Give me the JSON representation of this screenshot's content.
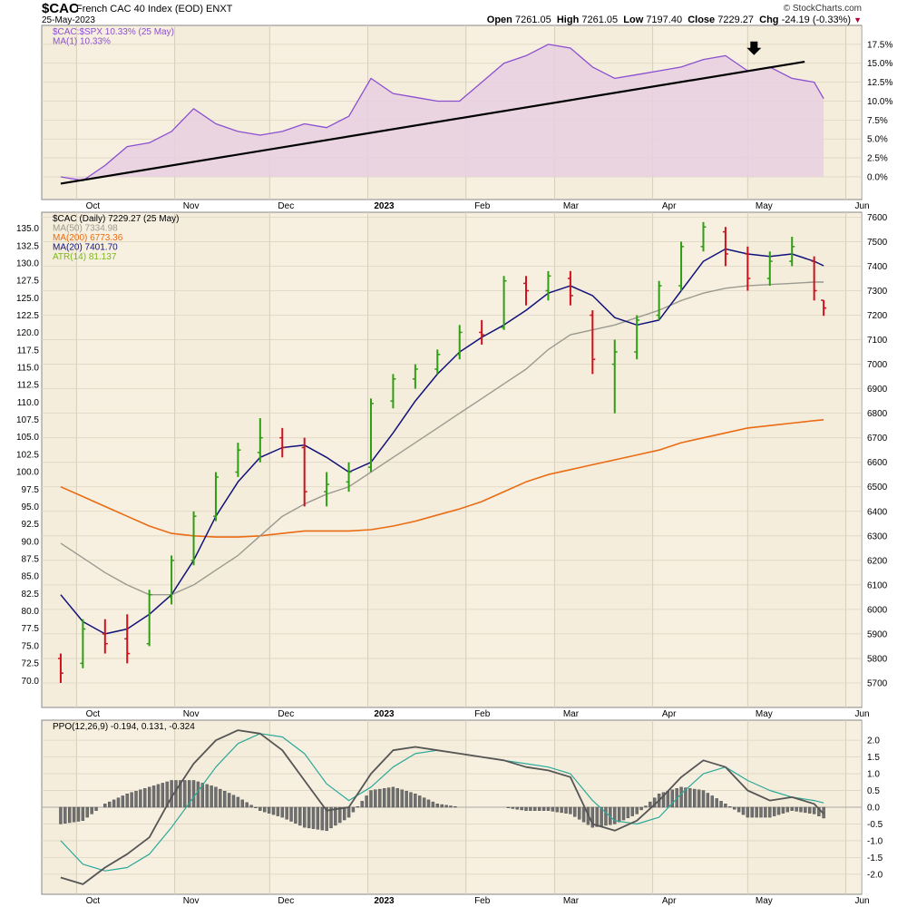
{
  "header": {
    "ticker": "$CAC",
    "description": "French CAC 40 Index (EOD)  ENXT",
    "date": "25-May-2023",
    "brand": "© StockCharts.com",
    "open_label": "Open",
    "open": "7261.05",
    "high_label": "High",
    "high": "7261.05",
    "low_label": "Low",
    "low": "7197.40",
    "close_label": "Close",
    "close": "7229.27",
    "chg_label": "Chg",
    "chg": "-24.19 (-0.33%)"
  },
  "colors": {
    "panel_bg": "#f5eddc",
    "ratio_line": "#8a4fd0",
    "ratio_fill": "#e8cfe0",
    "trendline": "#000000",
    "up_bar": "#2e9e12",
    "down_bar": "#d0101a",
    "neutral_bar": "#1a1ab8",
    "ma50": "#9a9a90",
    "ma200": "#ea6b12",
    "ma20": "#10127a",
    "atr": "#7ab81a",
    "ppo_line": "#555555",
    "ppo_signal": "#2aa898",
    "ppo_hist": "#707070"
  },
  "months": [
    "Oct",
    "Nov",
    "Dec",
    "2023",
    "Feb",
    "Mar",
    "Apr",
    "May",
    "Jun"
  ],
  "annotations": {
    "arrow_icon": "down-arrow-icon"
  },
  "chart_data": [
    {
      "type": "area",
      "panel": "ratio",
      "legend": [
        {
          "text": "$CAC:$SPX 10.33% (25 May)"
        },
        {
          "text": "MA(1) 10.33%"
        }
      ],
      "y_ticks": [
        "17.5%",
        "15.0%",
        "12.5%",
        "10.0%",
        "7.5%",
        "5.0%",
        "2.5%",
        "0.0%"
      ],
      "ylim": [
        -3.0,
        20.0
      ],
      "x": [
        "2022-09-26",
        "2022-10-03",
        "2022-10-10",
        "2022-10-17",
        "2022-10-24",
        "2022-10-31",
        "2022-11-07",
        "2022-11-14",
        "2022-11-21",
        "2022-11-28",
        "2022-12-05",
        "2022-12-12",
        "2022-12-19",
        "2022-12-26",
        "2023-01-02",
        "2023-01-09",
        "2023-01-16",
        "2023-01-23",
        "2023-01-30",
        "2023-02-06",
        "2023-02-13",
        "2023-02-20",
        "2023-02-27",
        "2023-03-06",
        "2023-03-13",
        "2023-03-20",
        "2023-03-27",
        "2023-04-03",
        "2023-04-10",
        "2023-04-17",
        "2023-04-24",
        "2023-05-01",
        "2023-05-08",
        "2023-05-15",
        "2023-05-22",
        "2023-05-25"
      ],
      "values": [
        0.0,
        -0.5,
        1.5,
        4.0,
        4.5,
        6.0,
        9.0,
        7.0,
        6.0,
        5.5,
        6.0,
        7.0,
        6.5,
        8.0,
        13.0,
        11.0,
        10.5,
        10.0,
        10.0,
        12.5,
        15.0,
        16.0,
        17.5,
        17.0,
        14.5,
        13.0,
        13.5,
        14.0,
        14.5,
        15.5,
        16.0,
        14.0,
        14.5,
        13.0,
        12.5,
        10.33
      ],
      "trendline": {
        "start": {
          "x": "2022-09-26",
          "y": -0.9
        },
        "end": {
          "x": "2023-05-19",
          "y": 15.2
        }
      }
    },
    {
      "type": "bar",
      "panel": "price",
      "legend": [
        {
          "text": "$CAC (Daily) 7229.27 (25 May)"
        },
        {
          "text": "MA(50) 7334.98"
        },
        {
          "text": "MA(200) 6773.36"
        },
        {
          "text": "MA(20) 7401.70"
        },
        {
          "text": "ATR(14) 81.137"
        }
      ],
      "left_ticks": [
        "135.0",
        "132.5",
        "130.0",
        "127.5",
        "125.0",
        "122.5",
        "120.0",
        "117.5",
        "115.0",
        "112.5",
        "110.0",
        "107.5",
        "105.0",
        "102.5",
        "100.0",
        "97.5",
        "95.0",
        "92.5",
        "90.0",
        "87.5",
        "85.0",
        "82.5",
        "80.0",
        "77.5",
        "75.0",
        "72.5",
        "70.0"
      ],
      "right_ticks": [
        "7600",
        "7500",
        "7400",
        "7300",
        "7200",
        "7100",
        "7000",
        "6900",
        "6800",
        "6700",
        "6600",
        "6500",
        "6400",
        "6300",
        "6200",
        "6100",
        "6000",
        "5900",
        "5800",
        "5700"
      ],
      "ylim": [
        5600,
        7620
      ],
      "ohlc": [
        [
          "2022-09-26",
          5800,
          5820,
          5700,
          5740
        ],
        [
          "2022-10-03",
          5780,
          5960,
          5760,
          5920
        ],
        [
          "2022-10-10",
          5900,
          5960,
          5820,
          5860
        ],
        [
          "2022-10-17",
          5880,
          5980,
          5780,
          5820
        ],
        [
          "2022-10-24",
          5860,
          6080,
          5850,
          6060
        ],
        [
          "2022-10-31",
          6050,
          6220,
          6020,
          6200
        ],
        [
          "2022-11-07",
          6200,
          6400,
          6180,
          6380
        ],
        [
          "2022-11-14",
          6380,
          6560,
          6360,
          6540
        ],
        [
          "2022-11-21",
          6560,
          6680,
          6540,
          6650
        ],
        [
          "2022-11-28",
          6640,
          6780,
          6600,
          6700
        ],
        [
          "2022-12-05",
          6700,
          6740,
          6620,
          6660
        ],
        [
          "2022-12-12",
          6660,
          6700,
          6420,
          6480
        ],
        [
          "2022-12-19",
          6480,
          6560,
          6420,
          6510
        ],
        [
          "2022-12-26",
          6520,
          6600,
          6480,
          6560
        ],
        [
          "2023-01-02",
          6580,
          6860,
          6560,
          6840
        ],
        [
          "2023-01-09",
          6850,
          6960,
          6820,
          6940
        ],
        [
          "2023-01-16",
          6940,
          7000,
          6900,
          6980
        ],
        [
          "2023-01-23",
          6980,
          7060,
          6960,
          7040
        ],
        [
          "2023-01-30",
          7040,
          7160,
          7020,
          7130
        ],
        [
          "2023-02-06",
          7130,
          7180,
          7080,
          7120
        ],
        [
          "2023-02-13",
          7150,
          7360,
          7140,
          7340
        ],
        [
          "2023-02-20",
          7330,
          7360,
          7240,
          7300
        ],
        [
          "2023-02-27",
          7300,
          7380,
          7260,
          7360
        ],
        [
          "2023-03-06",
          7350,
          7380,
          7240,
          7280
        ],
        [
          "2023-03-13",
          7200,
          7220,
          6960,
          7020
        ],
        [
          "2023-03-20",
          7000,
          7100,
          6800,
          7050
        ],
        [
          "2023-03-27",
          7050,
          7200,
          7020,
          7180
        ],
        [
          "2023-04-03",
          7200,
          7340,
          7180,
          7320
        ],
        [
          "2023-04-10",
          7320,
          7500,
          7300,
          7480
        ],
        [
          "2023-04-17",
          7480,
          7580,
          7460,
          7560
        ],
        [
          "2023-04-24",
          7540,
          7560,
          7400,
          7450
        ],
        [
          "2023-05-01",
          7450,
          7480,
          7300,
          7350
        ],
        [
          "2023-05-08",
          7350,
          7460,
          7320,
          7420
        ],
        [
          "2023-05-15",
          7420,
          7520,
          7400,
          7480
        ],
        [
          "2023-05-22",
          7420,
          7440,
          7260,
          7300
        ],
        [
          "2023-05-25",
          7261.05,
          7261.05,
          7197.4,
          7229.27
        ]
      ],
      "ma50": [
        6270,
        6210,
        6150,
        6100,
        6060,
        6060,
        6100,
        6160,
        6220,
        6300,
        6380,
        6430,
        6470,
        6500,
        6560,
        6620,
        6680,
        6740,
        6800,
        6860,
        6920,
        6980,
        7060,
        7120,
        7140,
        7160,
        7190,
        7220,
        7260,
        7290,
        7310,
        7320,
        7325,
        7330,
        7335,
        7334.98
      ],
      "ma200": [
        6500,
        6460,
        6420,
        6380,
        6340,
        6310,
        6300,
        6295,
        6295,
        6300,
        6310,
        6320,
        6320,
        6320,
        6325,
        6340,
        6360,
        6385,
        6410,
        6440,
        6480,
        6520,
        6550,
        6570,
        6590,
        6610,
        6630,
        6650,
        6680,
        6700,
        6720,
        6740,
        6750,
        6760,
        6770,
        6773.36
      ],
      "ma20": [
        6060,
        5950,
        5900,
        5920,
        5980,
        6060,
        6200,
        6380,
        6520,
        6620,
        6660,
        6670,
        6620,
        6560,
        6600,
        6720,
        6850,
        6960,
        7050,
        7110,
        7160,
        7220,
        7290,
        7320,
        7280,
        7190,
        7160,
        7180,
        7300,
        7420,
        7470,
        7450,
        7440,
        7450,
        7420,
        7401.7
      ]
    },
    {
      "type": "line",
      "panel": "ppo",
      "legend": [
        {
          "text": "PPO(12,26,9) -0.194, 0.131, -0.324"
        }
      ],
      "y_ticks": [
        "2.0",
        "1.5",
        "1.0",
        "0.5",
        "0.0",
        "-0.5",
        "-1.0",
        "-1.5",
        "-2.0"
      ],
      "ylim": [
        -2.6,
        2.6
      ],
      "x": [
        "2022-09-26",
        "2022-10-03",
        "2022-10-10",
        "2022-10-17",
        "2022-10-24",
        "2022-10-31",
        "2022-11-07",
        "2022-11-14",
        "2022-11-21",
        "2022-11-28",
        "2022-12-05",
        "2022-12-12",
        "2022-12-19",
        "2022-12-26",
        "2023-01-02",
        "2023-01-09",
        "2023-01-16",
        "2023-01-23",
        "2023-01-30",
        "2023-02-06",
        "2023-02-13",
        "2023-02-20",
        "2023-02-27",
        "2023-03-06",
        "2023-03-13",
        "2023-03-20",
        "2023-03-27",
        "2023-04-03",
        "2023-04-10",
        "2023-04-17",
        "2023-04-24",
        "2023-05-01",
        "2023-05-08",
        "2023-05-15",
        "2023-05-22",
        "2023-05-25"
      ],
      "ppo": [
        -2.1,
        -2.3,
        -1.8,
        -1.4,
        -0.9,
        0.3,
        1.3,
        2.0,
        2.3,
        2.2,
        1.7,
        0.8,
        -0.1,
        0.0,
        1.0,
        1.7,
        1.8,
        1.7,
        1.6,
        1.5,
        1.4,
        1.2,
        1.1,
        0.9,
        -0.5,
        -0.7,
        -0.4,
        0.2,
        0.9,
        1.4,
        1.2,
        0.5,
        0.2,
        0.3,
        0.1,
        -0.194
      ],
      "signal": [
        -1.0,
        -1.7,
        -1.9,
        -1.8,
        -1.4,
        -0.6,
        0.3,
        1.2,
        1.9,
        2.2,
        2.1,
        1.6,
        0.7,
        0.2,
        0.6,
        1.2,
        1.6,
        1.7,
        1.6,
        1.5,
        1.4,
        1.3,
        1.2,
        1.0,
        0.2,
        -0.4,
        -0.5,
        -0.3,
        0.4,
        1.0,
        1.2,
        0.8,
        0.5,
        0.3,
        0.2,
        0.131
      ],
      "histogram": [
        -0.5,
        -0.4,
        0.1,
        0.4,
        0.6,
        0.8,
        0.8,
        0.6,
        0.3,
        -0.1,
        -0.3,
        -0.6,
        -0.7,
        -0.3,
        0.5,
        0.6,
        0.4,
        0.1,
        0.0,
        0.0,
        0.0,
        -0.1,
        -0.1,
        -0.2,
        -0.6,
        -0.5,
        -0.2,
        0.4,
        0.6,
        0.5,
        0.1,
        -0.3,
        -0.3,
        -0.1,
        -0.2,
        -0.324
      ]
    }
  ]
}
